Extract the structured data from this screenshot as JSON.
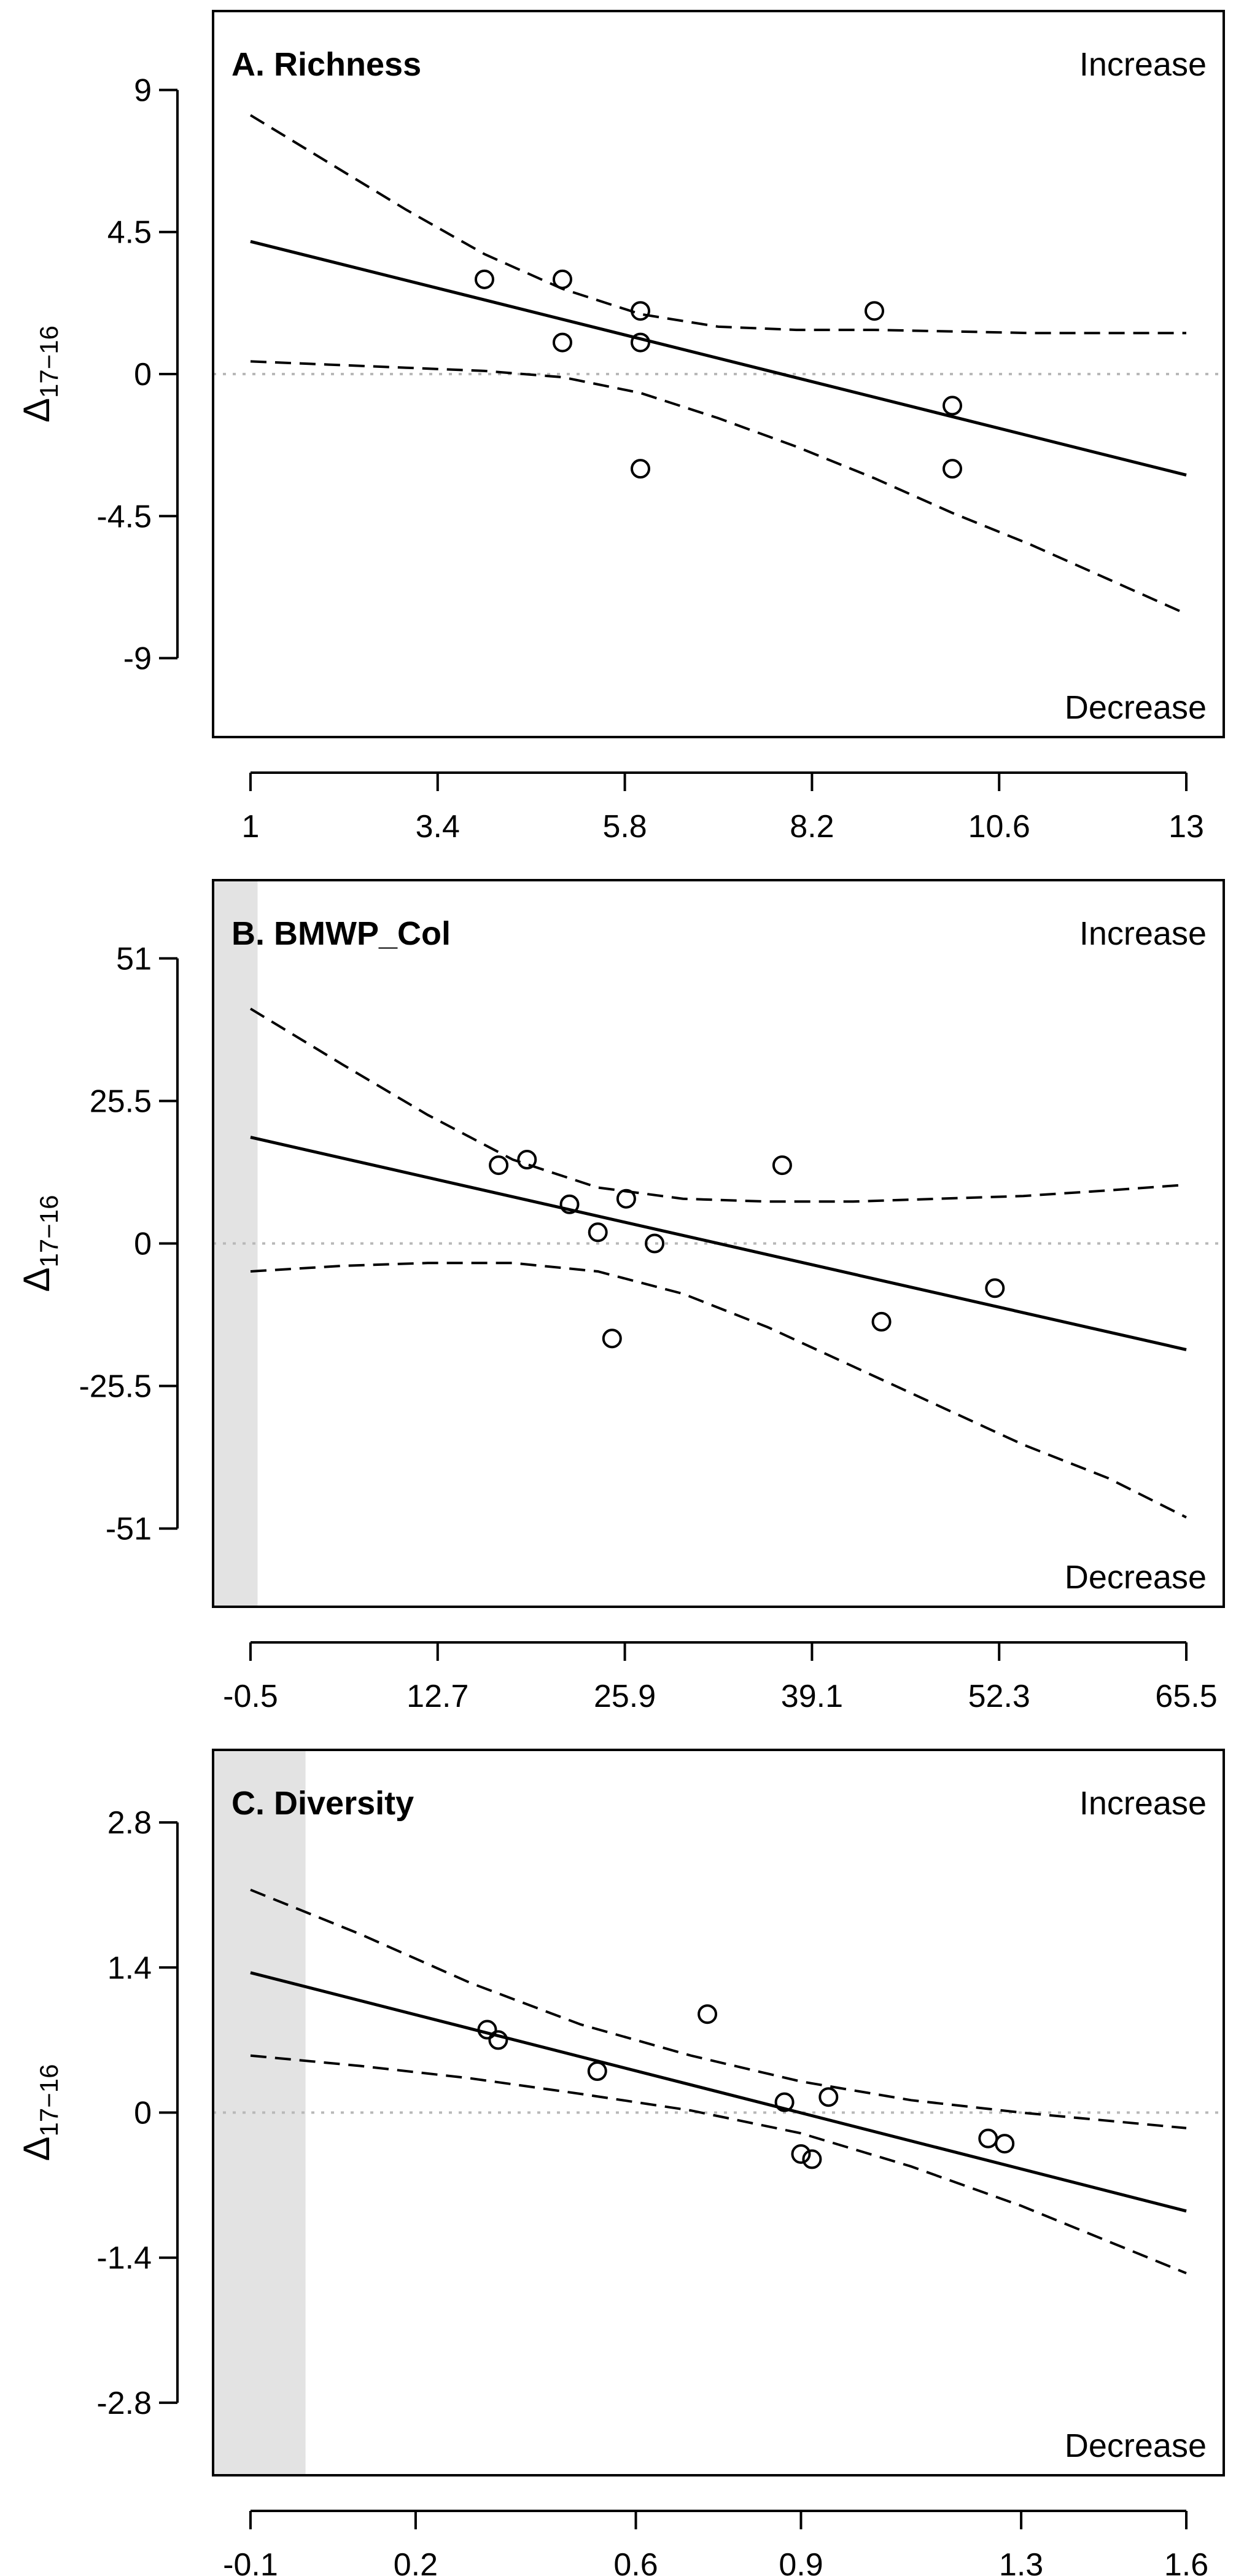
{
  "chart_data": [
    {
      "type": "scatter",
      "title": "A. Richness",
      "xlabel": "",
      "ylabel_main": "Δ",
      "ylabel_sub": "17−16",
      "xlim": [
        1,
        13
      ],
      "ylim": [
        -11.5,
        11.5
      ],
      "xticks": [
        1,
        3.4,
        5.8,
        8.2,
        10.6,
        13
      ],
      "xtick_labels": [
        "1",
        "3.4",
        "5.8",
        "8.2",
        "10.6",
        "13"
      ],
      "yticks": [
        9,
        4.5,
        0,
        -4.5,
        -9
      ],
      "ytick_labels": [
        "9",
        "4.5",
        "0",
        "-4.5",
        "-9"
      ],
      "label_top_right": "Increase",
      "label_bottom_right": "Decrease",
      "shaded_xmax": null,
      "points": {
        "x": [
          4,
          5,
          5,
          6,
          6,
          6,
          9,
          10,
          10
        ],
        "y": [
          3,
          3,
          1,
          2,
          1,
          -3,
          2,
          -1,
          -3
        ]
      },
      "fit": {
        "x": [
          1,
          13
        ],
        "y": [
          4.2,
          -3.2
        ]
      },
      "ci_upper": {
        "x": [
          1,
          2,
          3,
          4,
          5,
          6,
          7,
          8,
          9,
          10,
          11,
          12,
          13
        ],
        "y": [
          8.2,
          6.7,
          5.2,
          3.8,
          2.7,
          1.9,
          1.5,
          1.4,
          1.4,
          1.35,
          1.3,
          1.3,
          1.3
        ]
      },
      "ci_lower": {
        "x": [
          1,
          2,
          3,
          4,
          5,
          6,
          7,
          8,
          9,
          10,
          11,
          12,
          13
        ],
        "y": [
          0.4,
          0.3,
          0.2,
          0.1,
          -0.1,
          -0.6,
          -1.4,
          -2.3,
          -3.3,
          -4.4,
          -5.4,
          -6.5,
          -7.6
        ]
      },
      "baseline_y": 0
    },
    {
      "type": "scatter",
      "title": "B. BMWP_Col",
      "xlabel": "",
      "ylabel_main": "Δ",
      "ylabel_sub": "17−16",
      "xlim": [
        -0.5,
        65.5
      ],
      "ylim": [
        -65,
        65
      ],
      "xticks": [
        -0.5,
        12.7,
        25.9,
        39.1,
        52.3,
        65.5
      ],
      "xtick_labels": [
        "-0.5",
        "12.7",
        "25.9",
        "39.1",
        "52.3",
        "65.5"
      ],
      "yticks": [
        51,
        25.5,
        0,
        -25.5,
        -51
      ],
      "ytick_labels": [
        "51",
        "25.5",
        "0",
        "-25.5",
        "-51"
      ],
      "label_top_right": "Increase",
      "label_bottom_right": "Decrease",
      "shaded_xmax": 0,
      "points": {
        "x": [
          17,
          19,
          22,
          24,
          26,
          25,
          28,
          37,
          44,
          52
        ],
        "y": [
          14,
          15,
          7,
          2,
          8,
          -17,
          0,
          14,
          -14,
          -8
        ]
      },
      "fit": {
        "x": [
          -0.5,
          65.5
        ],
        "y": [
          19,
          -19
        ]
      },
      "ci_upper": {
        "x": [
          -0.5,
          6,
          12,
          18,
          24,
          30,
          36,
          42,
          48,
          54,
          60,
          65.5
        ],
        "y": [
          42,
          32,
          23,
          15,
          10,
          8,
          7.5,
          7.5,
          8,
          8.5,
          9.5,
          10.5
        ]
      },
      "ci_lower": {
        "x": [
          -0.5,
          6,
          12,
          18,
          24,
          30,
          36,
          42,
          48,
          54,
          60,
          65.5
        ],
        "y": [
          -5,
          -4,
          -3.5,
          -3.5,
          -5,
          -9,
          -15,
          -22,
          -29,
          -36,
          -42,
          -49
        ]
      },
      "baseline_y": 0
    },
    {
      "type": "scatter",
      "title": "C. Diversity",
      "xlabel": "",
      "ylabel_main": "Δ",
      "ylabel_sub": "17−16",
      "xlim": [
        -0.1,
        1.6
      ],
      "ylim": [
        -3.5,
        3.5
      ],
      "xticks": [
        -0.1,
        0.2,
        0.6,
        0.9,
        1.3,
        1.6
      ],
      "xtick_labels": [
        "-0.1",
        "0.2",
        "0.6",
        "0.9",
        "1.3",
        "1.6"
      ],
      "yticks": [
        2.8,
        1.4,
        0,
        -1.4,
        -2.8
      ],
      "ytick_labels": [
        "2.8",
        "1.4",
        "0",
        "-1.4",
        "-2.8"
      ],
      "label_top_right": "Increase",
      "label_bottom_right": "Decrease",
      "shaded_xmax": 0,
      "points": {
        "x": [
          0.33,
          0.35,
          0.53,
          0.73,
          0.87,
          0.9,
          0.92,
          0.95,
          1.24,
          1.27
        ],
        "y": [
          0.8,
          0.7,
          0.4,
          0.95,
          0.1,
          -0.4,
          -0.45,
          0.15,
          -0.25,
          -0.3
        ]
      },
      "fit": {
        "x": [
          -0.1,
          1.6
        ],
        "y": [
          1.35,
          -0.95
        ]
      },
      "ci_upper": {
        "x": [
          -0.1,
          0.1,
          0.3,
          0.5,
          0.7,
          0.9,
          1.1,
          1.3,
          1.6
        ],
        "y": [
          2.15,
          1.72,
          1.25,
          0.85,
          0.55,
          0.3,
          0.12,
          0.0,
          -0.15
        ]
      },
      "ci_lower": {
        "x": [
          -0.1,
          0.1,
          0.3,
          0.5,
          0.7,
          0.9,
          1.1,
          1.3,
          1.6
        ],
        "y": [
          0.55,
          0.45,
          0.33,
          0.18,
          0.02,
          -0.2,
          -0.52,
          -0.9,
          -1.55
        ]
      },
      "baseline_y": 0
    }
  ]
}
